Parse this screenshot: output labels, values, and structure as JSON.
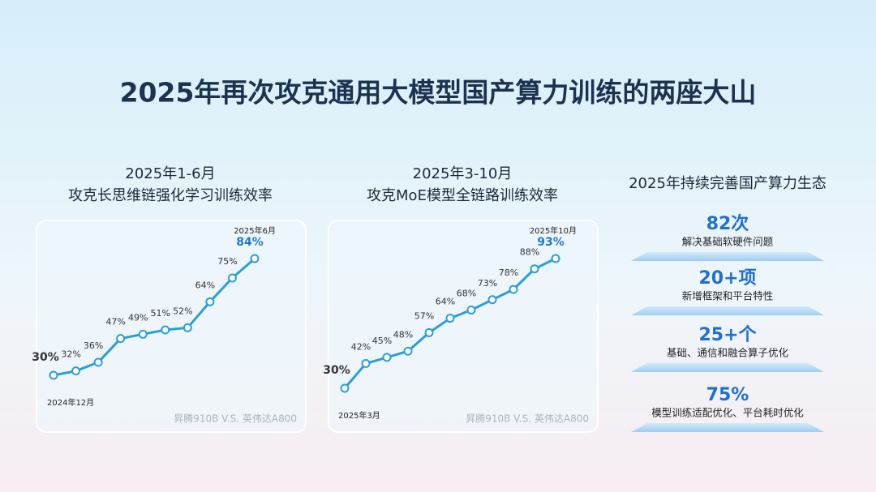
{
  "title": "2025年再次攻克通用大模型国产算力训练的两座大山",
  "chart_data": [
    {
      "type": "line",
      "title": "2025年1-6月",
      "subtitle": "攻克长思维链强化学习训练效率",
      "start_label": "2024年12月",
      "end_label": "2025年6月",
      "note": "昇腾910B V.S. 英伟达A800",
      "color": "#2a9fd6",
      "values": [
        30,
        32,
        36,
        47,
        49,
        51,
        52,
        64,
        75,
        84
      ],
      "value_labels": [
        "30%",
        "32%",
        "36%",
        "47%",
        "49%",
        "51%",
        "52%",
        "64%",
        "75%",
        "84%"
      ]
    },
    {
      "type": "line",
      "title": "2025年3-10月",
      "subtitle": "攻克MoE模型全链路训练效率",
      "start_label": "2025年3月",
      "end_label": "2025年10月",
      "note": "昇腾910B V.S. 英伟达A800",
      "color": "#2a9fd6",
      "values": [
        30,
        42,
        45,
        48,
        57,
        64,
        68,
        73,
        78,
        88,
        93
      ],
      "value_labels": [
        "30%",
        "42%",
        "45%",
        "48%",
        "57%",
        "64%",
        "68%",
        "73%",
        "78%",
        "88%",
        "93%"
      ]
    }
  ],
  "ecosystem": {
    "title": "2025年持续完善国产算力生态",
    "items": [
      {
        "value": "82次",
        "label": "解决基础软硬件问题"
      },
      {
        "value": "20+项",
        "label": "新增框架和平台特性"
      },
      {
        "value": "25+个",
        "label": "基础、通信和融合算子优化"
      },
      {
        "value": "75%",
        "label": "模型训练适配优化、平台耗时优化"
      }
    ]
  }
}
